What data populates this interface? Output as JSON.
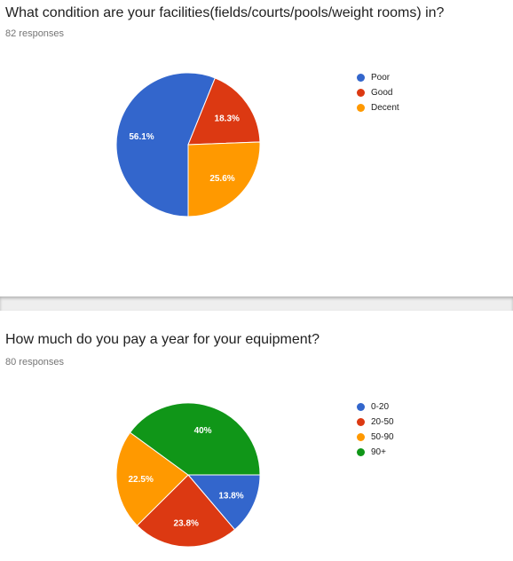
{
  "chart_data": [
    {
      "type": "pie",
      "title": "What condition are your facilities(fields/courts/pools/weight rooms) in?",
      "subtitle": "82 responses",
      "categories": [
        "Poor",
        "Good",
        "Decent"
      ],
      "values": [
        56.1,
        18.3,
        25.6
      ],
      "data_labels": [
        "56.1%",
        "18.3%",
        "25.6%"
      ],
      "colors": [
        "#3366cc",
        "#dc3912",
        "#ff9900"
      ],
      "legend_position": "right"
    },
    {
      "type": "pie",
      "title": "How much do you pay a year for your equipment?",
      "subtitle": "80 responses",
      "categories": [
        "0-20",
        "20-50",
        "50-90",
        "90+"
      ],
      "values": [
        13.8,
        23.8,
        22.5,
        40
      ],
      "data_labels": [
        "13.8%",
        "23.8%",
        "22.5%",
        "40%"
      ],
      "colors": [
        "#3366cc",
        "#dc3912",
        "#ff9900",
        "#109618"
      ],
      "legend_position": "right"
    }
  ]
}
